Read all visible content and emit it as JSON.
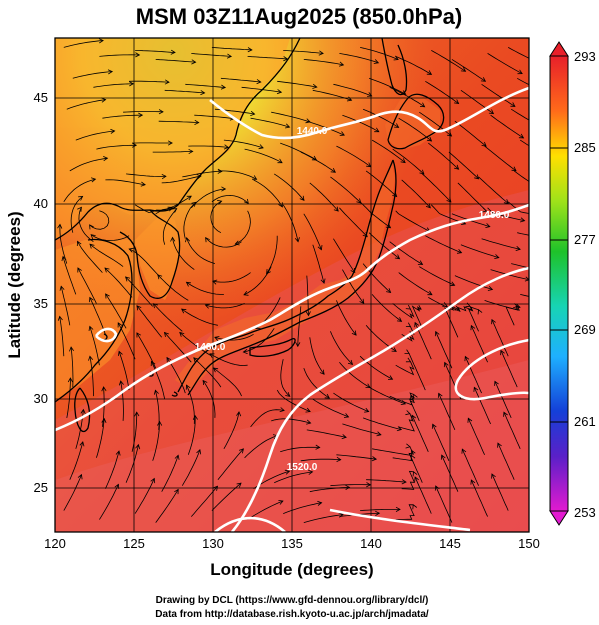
{
  "title": "MSM 03Z11Aug2025 (850.0hPa)",
  "xlabel": "Longitude (degrees)",
  "ylabel": "Latitude (degrees)",
  "credit": [
    "Drawing by DCL (https://www.gfd-dennou.org/library/dcl/)",
    "Data from http://database.rish.kyoto-u.ac.jp/arch/jmadata/"
  ],
  "colors": {
    "frame": "#000000",
    "coast": "#000000",
    "contour": "#ffffff",
    "streamline": "#000000"
  },
  "map": {
    "lon_range": [
      120,
      150
    ],
    "lat_range": [
      22.5,
      47.5
    ],
    "x_ticks": [
      "120",
      "125",
      "130",
      "135",
      "140",
      "145",
      "150"
    ],
    "y_ticks": [
      "25",
      "30",
      "35",
      "40",
      "45"
    ]
  },
  "colorbar": {
    "labels": [
      "293",
      "285",
      "277",
      "269",
      "261",
      "253"
    ]
  },
  "contour_labels": [
    "1440.0",
    "1480.0",
    "1480.0",
    "1520.0"
  ]
}
